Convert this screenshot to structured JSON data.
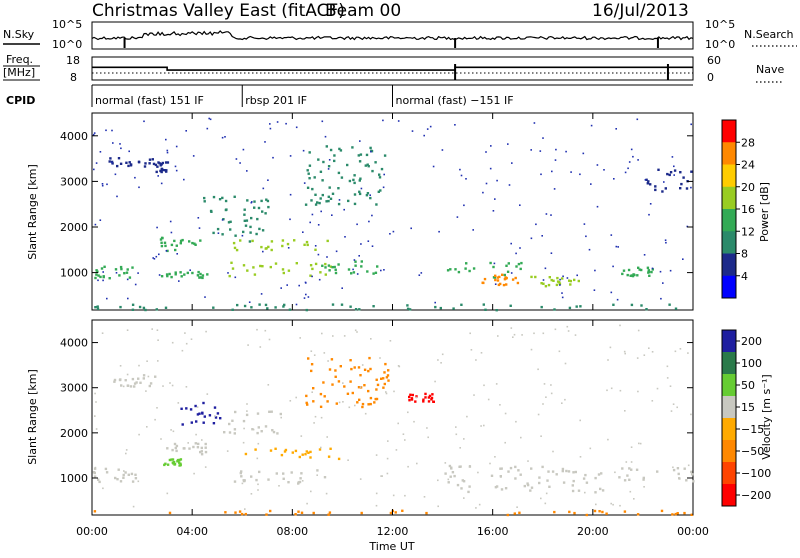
{
  "header": {
    "title": "Christmas Valley East (fitACF)",
    "beam_label": "Beam 00",
    "date": "16/Jul/2013"
  },
  "top_panel": {
    "left_label": "N.Sky",
    "right_label": "N.Search",
    "ticks": [
      "10^5",
      "10^0"
    ],
    "ticks_right": [
      "10^5",
      "10^0"
    ]
  },
  "freq_panel": {
    "left_label_line1": "Freq.",
    "left_label_line2": "[MHz]",
    "left_ticks": [
      "18",
      "8"
    ],
    "right_ticks": [
      "60",
      "0"
    ],
    "right_label": "Nave",
    "freq_levels": [
      {
        "t": 0,
        "v": 13.5
      },
      {
        "t": 3,
        "v": 12.3
      },
      {
        "t": 14.5,
        "v": 13.5
      },
      {
        "t": 24,
        "v": 13.5
      }
    ]
  },
  "cpid": {
    "label": "CPID",
    "segments": [
      {
        "start": 0,
        "end": 6,
        "text": "normal (fast) 151 IF"
      },
      {
        "start": 6,
        "end": 12,
        "text": "rbsp 201 IF"
      },
      {
        "start": 12,
        "end": 24,
        "text": "normal (fast) −151 IF"
      }
    ]
  },
  "chart_data": [
    {
      "type": "heatmap",
      "quantity": "Power",
      "ylabel": "Slant Range [km]",
      "ylim": [
        180,
        4500
      ],
      "yticks": [
        "4000",
        "3000",
        "2000",
        "1000"
      ],
      "colorbar_label": "Power [dB]",
      "colorbar_ticks": [
        "28",
        "24",
        "20",
        "16",
        "12",
        "8",
        "4"
      ],
      "colorbar_colors": [
        "#ff0000",
        "#ff8800",
        "#ffcc00",
        "#99cc22",
        "#33aa55",
        "#2b8a6a",
        "#1c2a8a",
        "#0000ff"
      ],
      "regions": [
        {
          "t0": 0.0,
          "t1": 1.6,
          "r0": 900,
          "r1": 1200,
          "level": 12
        },
        {
          "t0": 0.6,
          "t1": 2.5,
          "r0": 3350,
          "r1": 3550,
          "level": 6
        },
        {
          "t0": 2.5,
          "t1": 3.0,
          "r0": 3200,
          "r1": 3450,
          "level": 6
        },
        {
          "t0": 2.7,
          "t1": 4.4,
          "r0": 1500,
          "r1": 1800,
          "level": 14
        },
        {
          "t0": 2.7,
          "t1": 4.6,
          "r0": 900,
          "r1": 1050,
          "level": 12
        },
        {
          "t0": 4.4,
          "t1": 7.0,
          "r0": 1700,
          "r1": 2700,
          "level": 10
        },
        {
          "t0": 5.4,
          "t1": 9.5,
          "r0": 1500,
          "r1": 1750,
          "level": 18
        },
        {
          "t0": 5.4,
          "t1": 10.0,
          "r0": 950,
          "r1": 1250,
          "level": 18
        },
        {
          "t0": 9.0,
          "t1": 11.5,
          "r0": 1000,
          "r1": 1300,
          "level": 12
        },
        {
          "t0": 8.5,
          "t1": 11.8,
          "r0": 2500,
          "r1": 3800,
          "level": 8
        },
        {
          "t0": 14.0,
          "t1": 17.2,
          "r0": 900,
          "r1": 1250,
          "level": 14
        },
        {
          "t0": 15.5,
          "t1": 17.0,
          "r0": 750,
          "r1": 1000,
          "level": 24
        },
        {
          "t0": 17.5,
          "t1": 19.5,
          "r0": 700,
          "r1": 950,
          "level": 18
        },
        {
          "t0": 21.0,
          "t1": 22.4,
          "r0": 950,
          "r1": 1150,
          "level": 12
        },
        {
          "t0": 22.0,
          "t1": 24.0,
          "r0": 2700,
          "r1": 3300,
          "level": 6
        },
        {
          "t0": 0.0,
          "t1": 24.0,
          "r0": 200,
          "r1": 330,
          "level": 10
        }
      ]
    },
    {
      "type": "heatmap",
      "quantity": "Velocity",
      "ylabel": "Slant Range [km]",
      "ylim": [
        180,
        4500
      ],
      "yticks": [
        "4000",
        "3000",
        "2000",
        "1000"
      ],
      "xlabel": "Time UT",
      "xticks": [
        "00:00",
        "04:00",
        "08:00",
        "12:00",
        "16:00",
        "20:00",
        "00:00"
      ],
      "xlim": [
        0,
        24
      ],
      "colorbar_label": "Velocity [m s⁻¹]",
      "colorbar_ticks": [
        "200",
        "100",
        "50",
        "15",
        "−15",
        "−50",
        "−100",
        "−200"
      ],
      "colorbar_colors": [
        "#1f1fa0",
        "#2a7a4a",
        "#66cc33",
        "#c8c8c0",
        "#ffaa00",
        "#ff8800",
        "#ff4400",
        "#ff0000"
      ],
      "regions": [
        {
          "t0": 0.0,
          "t1": 1.8,
          "r0": 900,
          "r1": 1250,
          "level": "gray"
        },
        {
          "t0": 0.8,
          "t1": 2.5,
          "r0": 3050,
          "r1": 3350,
          "level": "gray"
        },
        {
          "t0": 2.8,
          "t1": 4.6,
          "r0": 1550,
          "r1": 1800,
          "level": "gray"
        },
        {
          "t0": 2.8,
          "t1": 3.6,
          "r0": 1300,
          "r1": 1450,
          "level": "green"
        },
        {
          "t0": 3.5,
          "t1": 5.3,
          "r0": 2200,
          "r1": 2700,
          "level": "blue"
        },
        {
          "t0": 5.0,
          "t1": 7.5,
          "r0": 2000,
          "r1": 2500,
          "level": "gray"
        },
        {
          "t0": 5.5,
          "t1": 10.0,
          "r0": 1450,
          "r1": 1700,
          "level": "yellow"
        },
        {
          "t0": 5.5,
          "t1": 10.0,
          "r0": 900,
          "r1": 1200,
          "level": "gray"
        },
        {
          "t0": 8.5,
          "t1": 11.8,
          "r0": 2600,
          "r1": 3700,
          "level": "orange"
        },
        {
          "t0": 12.5,
          "t1": 13.6,
          "r0": 2700,
          "r1": 2900,
          "level": "red"
        },
        {
          "t0": 14.0,
          "t1": 20.5,
          "r0": 700,
          "r1": 1300,
          "level": "gray"
        },
        {
          "t0": 21.0,
          "t1": 24.0,
          "r0": 950,
          "r1": 1250,
          "level": "gray"
        },
        {
          "t0": 0.0,
          "t1": 24.0,
          "r0": 200,
          "r1": 300,
          "level": "orange"
        }
      ]
    }
  ],
  "colors": {
    "power_scale": [
      "#0000ff",
      "#1c2a8a",
      "#2b8a6a",
      "#33aa55",
      "#99cc22",
      "#ffcc00",
      "#ff8800",
      "#ff0000"
    ],
    "velocity_map": {
      "blue": "#1f1fa0",
      "green": "#66cc33",
      "gray": "#c8c8c0",
      "yellow": "#ffaa00",
      "orange": "#ff8800",
      "red": "#ff0000"
    }
  }
}
